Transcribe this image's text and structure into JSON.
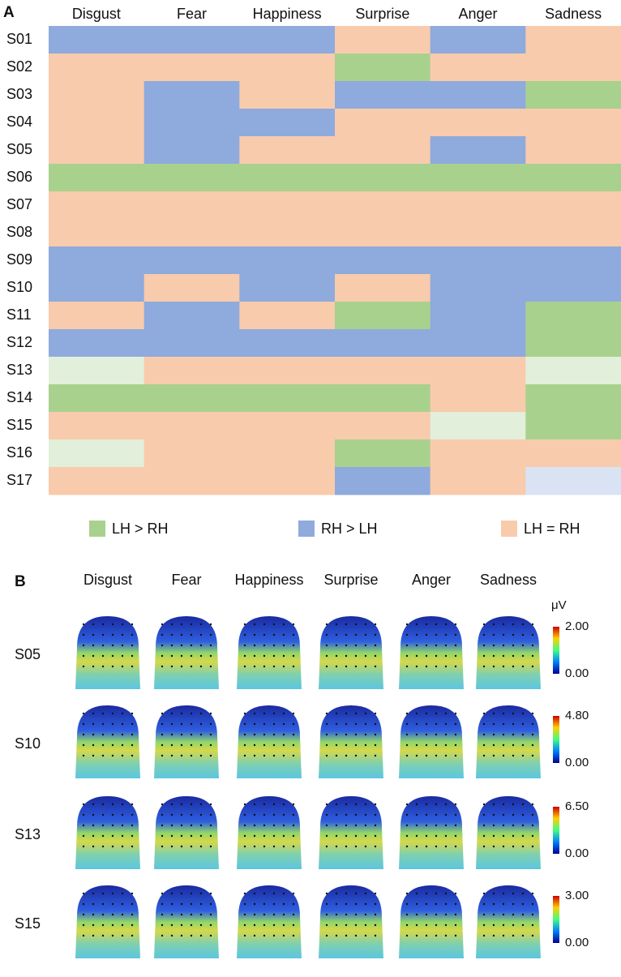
{
  "panel_a": {
    "label": "A",
    "columns": [
      "Disgust",
      "Fear",
      "Happiness",
      "Surprise",
      "Anger",
      "Sadness"
    ],
    "rows": [
      {
        "name": "S01",
        "cells": [
          "#8faadc",
          "#8faadc",
          "#8faadc",
          "#f8cbad",
          "#8faadc",
          "#f8cbad"
        ]
      },
      {
        "name": "S02",
        "cells": [
          "#f8cbad",
          "#f8cbad",
          "#f8cbad",
          "#a9d18e",
          "#f8cbad",
          "#f8cbad"
        ]
      },
      {
        "name": "S03",
        "cells": [
          "#f8cbad",
          "#8faadc",
          "#f8cbad",
          "#8faadc",
          "#8faadc",
          "#a9d18e"
        ]
      },
      {
        "name": "S04",
        "cells": [
          "#f8cbad",
          "#8faadc",
          "#8faadc",
          "#f8cbad",
          "#f8cbad",
          "#f8cbad"
        ]
      },
      {
        "name": "S05",
        "cells": [
          "#f8cbad",
          "#8faadc",
          "#f8cbad",
          "#f8cbad",
          "#8faadc",
          "#f8cbad"
        ]
      },
      {
        "name": "S06",
        "cells": [
          "#a9d18e",
          "#a9d18e",
          "#a9d18e",
          "#a9d18e",
          "#a9d18e",
          "#a9d18e"
        ]
      },
      {
        "name": "S07",
        "cells": [
          "#f8cbad",
          "#f8cbad",
          "#f8cbad",
          "#f8cbad",
          "#f8cbad",
          "#f8cbad"
        ]
      },
      {
        "name": "S08",
        "cells": [
          "#f8cbad",
          "#f8cbad",
          "#f8cbad",
          "#f8cbad",
          "#f8cbad",
          "#f8cbad"
        ]
      },
      {
        "name": "S09",
        "cells": [
          "#8faadc",
          "#8faadc",
          "#8faadc",
          "#8faadc",
          "#8faadc",
          "#8faadc"
        ]
      },
      {
        "name": "S10",
        "cells": [
          "#8faadc",
          "#f8cbad",
          "#8faadc",
          "#f8cbad",
          "#8faadc",
          "#8faadc"
        ]
      },
      {
        "name": "S11",
        "cells": [
          "#f8cbad",
          "#8faadc",
          "#f8cbad",
          "#a9d18e",
          "#8faadc",
          "#a9d18e"
        ]
      },
      {
        "name": "S12",
        "cells": [
          "#8faadc",
          "#8faadc",
          "#8faadc",
          "#8faadc",
          "#8faadc",
          "#a9d18e"
        ]
      },
      {
        "name": "S13",
        "cells": [
          "#e2efda",
          "#f8cbad",
          "#f8cbad",
          "#f8cbad",
          "#f8cbad",
          "#e2efda"
        ]
      },
      {
        "name": "S14",
        "cells": [
          "#a9d18e",
          "#a9d18e",
          "#a9d18e",
          "#a9d18e",
          "#f8cbad",
          "#a9d18e"
        ]
      },
      {
        "name": "S15",
        "cells": [
          "#f8cbad",
          "#f8cbad",
          "#f8cbad",
          "#f8cbad",
          "#e2efda",
          "#a9d18e"
        ]
      },
      {
        "name": "S16",
        "cells": [
          "#e2efda",
          "#f8cbad",
          "#f8cbad",
          "#a9d18e",
          "#f8cbad",
          "#f8cbad"
        ]
      },
      {
        "name": "S17",
        "cells": [
          "#f8cbad",
          "#f8cbad",
          "#f8cbad",
          "#8faadc",
          "#f8cbad",
          "#dae3f3"
        ]
      }
    ],
    "legend": [
      {
        "label": "LH > RH",
        "color": "#a9d18e"
      },
      {
        "label": "RH > LH",
        "color": "#8faadc"
      },
      {
        "label": "LH = RH",
        "color": "#f8cbad"
      }
    ]
  },
  "panel_b": {
    "label": "B",
    "columns": [
      "Disgust",
      "Fear",
      "Happiness",
      "Surprise",
      "Anger",
      "Sadness"
    ],
    "unit": "μV",
    "rows": [
      {
        "name": "S05",
        "max": "2.00",
        "min": "0.00"
      },
      {
        "name": "S10",
        "max": "4.80",
        "min": "0.00"
      },
      {
        "name": "S13",
        "max": "6.50",
        "min": "0.00"
      },
      {
        "name": "S15",
        "max": "3.00",
        "min": "0.00"
      }
    ]
  }
}
